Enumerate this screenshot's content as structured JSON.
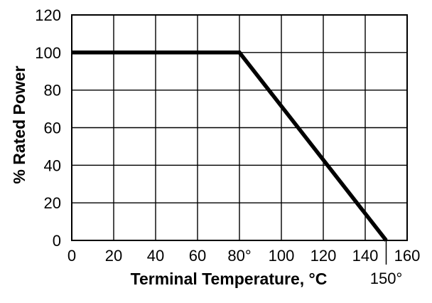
{
  "chart_data": {
    "type": "line",
    "title": "",
    "xlabel": "Terminal Temperature, °C",
    "ylabel": "% Rated Power",
    "xlim": [
      0,
      160
    ],
    "ylim": [
      0,
      120
    ],
    "x_ticks": [
      0,
      20,
      40,
      60,
      80,
      100,
      120,
      140,
      160
    ],
    "x_tick_labels": [
      "0",
      "20",
      "40",
      "60",
      "80°",
      "100",
      "120",
      "140",
      "160"
    ],
    "y_ticks": [
      0,
      20,
      40,
      60,
      80,
      100,
      120
    ],
    "y_tick_labels": [
      "0",
      "20",
      "40",
      "60",
      "80",
      "100",
      "120"
    ],
    "grid": true,
    "legend": "none",
    "series": [
      {
        "x": [
          0,
          80,
          150
        ],
        "y": [
          100,
          100,
          0
        ]
      }
    ],
    "annotations": [
      {
        "text": "150°",
        "x": 150,
        "y": 0
      }
    ],
    "colors": {
      "line": "#000000",
      "grid": "#000000",
      "background": "#ffffff"
    }
  }
}
